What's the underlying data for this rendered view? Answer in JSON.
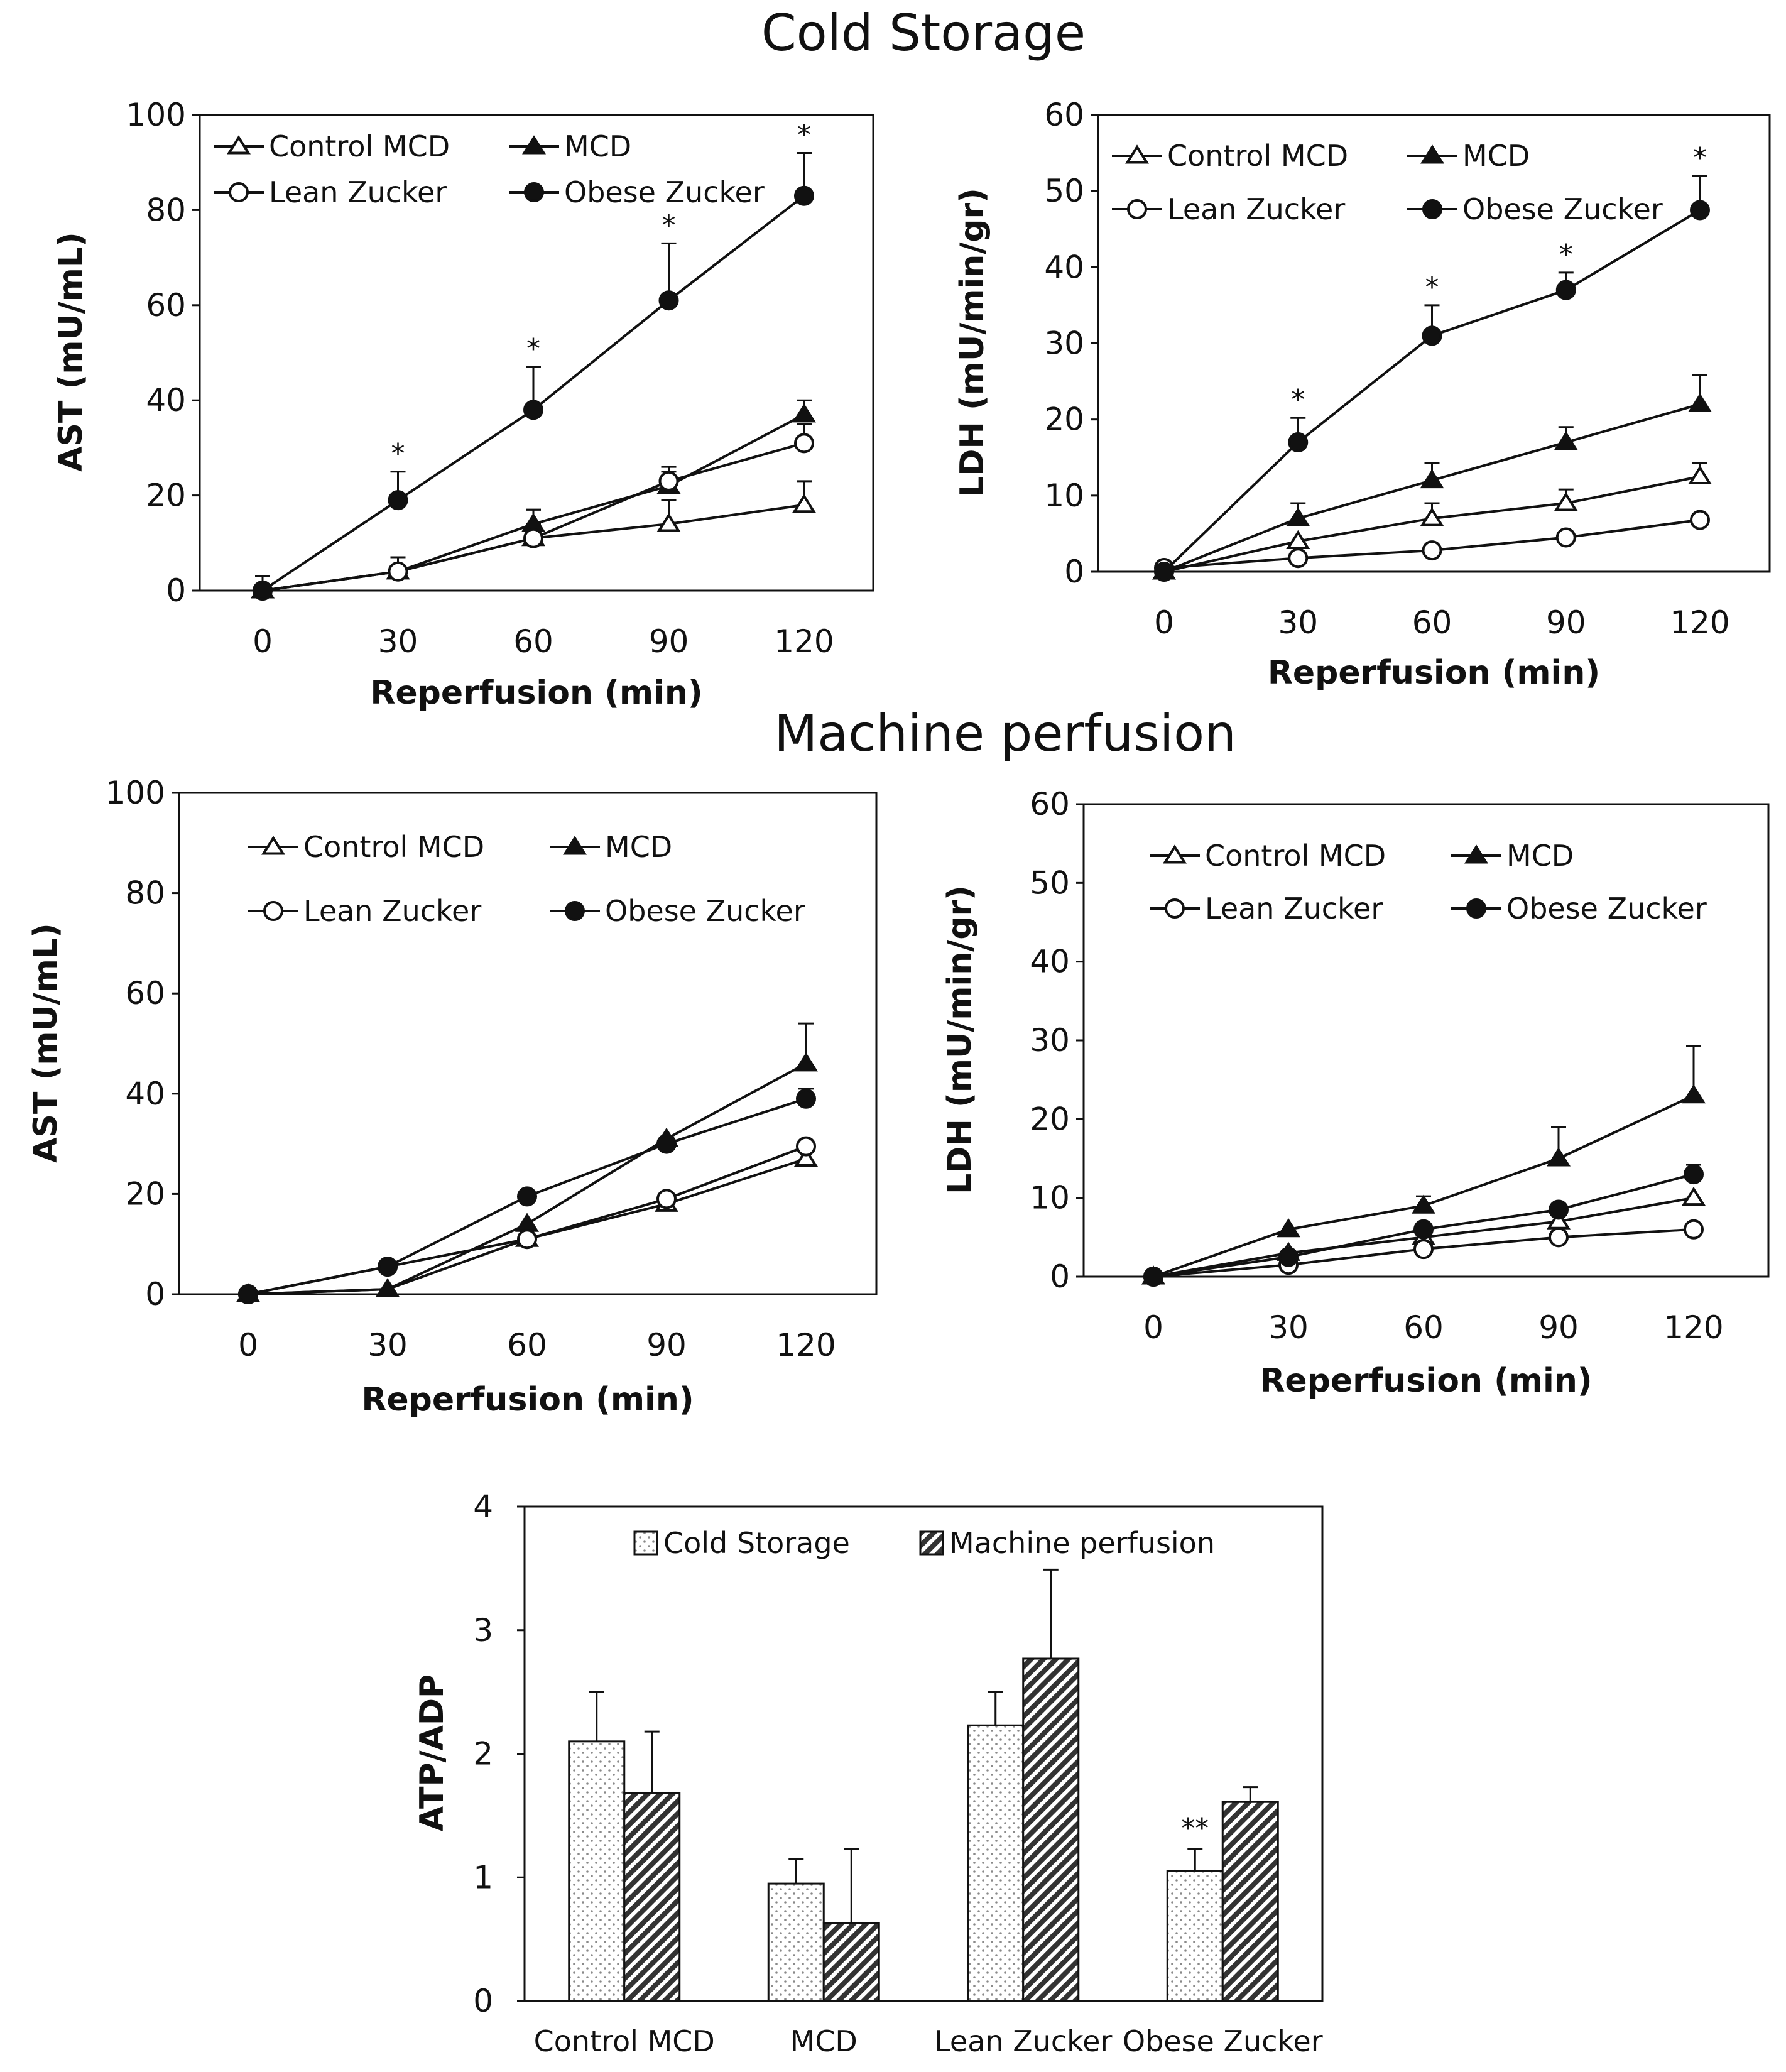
{
  "sections": {
    "cold_storage": "Cold Storage",
    "machine_perfusion": "Machine perfusion"
  },
  "chart_data": [
    {
      "id": "cs_ast",
      "type": "line",
      "section": "Cold Storage",
      "x": [
        0,
        30,
        60,
        90,
        120
      ],
      "xticks": [
        "0",
        "30",
        "60",
        "90",
        "120"
      ],
      "xlabel": "Reperfusion (min)",
      "ylabel": "AST (mU/mL)",
      "ylim": [
        0,
        100
      ],
      "yticks": [
        0,
        20,
        40,
        60,
        80,
        100
      ],
      "ytick_labels": [
        "0",
        "20",
        "40",
        "60",
        "80",
        "100"
      ],
      "legend": "top-left",
      "series": [
        {
          "name": "Control MCD",
          "marker": "triangle-open",
          "values": [
            0,
            4,
            11,
            14,
            18
          ],
          "errors": [
            3,
            3,
            3,
            5,
            5
          ]
        },
        {
          "name": "MCD",
          "marker": "triangle-filled",
          "values": [
            0,
            4,
            14,
            22,
            37
          ],
          "errors": [
            3,
            3,
            3,
            3,
            3
          ]
        },
        {
          "name": "Lean Zucker",
          "marker": "circle-open",
          "values": [
            0,
            4,
            11,
            23,
            31
          ],
          "errors": [
            3,
            3,
            6,
            3,
            4
          ]
        },
        {
          "name": "Obese Zucker",
          "marker": "circle-filled",
          "values": [
            0,
            19,
            38,
            61,
            83
          ],
          "errors": [
            3,
            6,
            9,
            12,
            9
          ]
        }
      ],
      "annotations": [
        "*",
        "*",
        "*",
        "*"
      ],
      "annotation_x": [
        30,
        60,
        90,
        120
      ]
    },
    {
      "id": "cs_ldh",
      "type": "line",
      "section": "Cold Storage",
      "x": [
        0,
        30,
        60,
        90,
        120
      ],
      "xticks": [
        "0",
        "30",
        "60",
        "90",
        "120"
      ],
      "xlabel": "Reperfusion (min)",
      "ylabel": "LDH (mU/min/gr)",
      "ylim": [
        0,
        60
      ],
      "yticks": [
        0,
        10,
        20,
        30,
        40,
        50,
        60
      ],
      "ytick_labels": [
        "0",
        "10",
        "20",
        "30",
        "40",
        "50",
        "60"
      ],
      "legend": "top-left",
      "series": [
        {
          "name": "Control MCD",
          "marker": "triangle-open",
          "values": [
            0,
            4,
            7,
            9,
            12.5
          ],
          "errors": [
            0,
            0,
            2,
            1.8,
            1.8
          ]
        },
        {
          "name": "MCD",
          "marker": "triangle-filled",
          "values": [
            0,
            7,
            12,
            17,
            22
          ],
          "errors": [
            0,
            2,
            2.3,
            2,
            3.8
          ]
        },
        {
          "name": "Lean Zucker",
          "marker": "circle-open",
          "values": [
            0.5,
            1.8,
            2.8,
            4.5,
            6.8
          ],
          "errors": [
            0,
            0,
            0,
            0,
            0
          ]
        },
        {
          "name": "Obese Zucker",
          "marker": "circle-filled",
          "values": [
            0,
            17,
            31,
            37,
            47.5
          ],
          "errors": [
            0,
            3.2,
            4,
            2.3,
            4.5
          ]
        }
      ],
      "annotations": [
        "*",
        "*",
        "*",
        "*"
      ],
      "annotation_x": [
        30,
        60,
        90,
        120
      ]
    },
    {
      "id": "mp_ast",
      "type": "line",
      "section": "Machine perfusion",
      "x": [
        0,
        30,
        60,
        90,
        120
      ],
      "xticks": [
        "0",
        "30",
        "60",
        "90",
        "120"
      ],
      "xlabel": "Reperfusion (min)",
      "ylabel": "AST (mU/mL)",
      "ylim": [
        0,
        100
      ],
      "yticks": [
        0,
        20,
        40,
        60,
        80,
        100
      ],
      "ytick_labels": [
        "0",
        "20",
        "40",
        "60",
        "80",
        "100"
      ],
      "legend": "top-left",
      "series": [
        {
          "name": "Control MCD",
          "marker": "triangle-open",
          "values": [
            0,
            1,
            11,
            18,
            27
          ],
          "errors": [
            0,
            0,
            0,
            0,
            0
          ]
        },
        {
          "name": "MCD",
          "marker": "triangle-filled",
          "values": [
            0,
            1,
            14,
            31,
            46
          ],
          "errors": [
            0,
            0,
            0,
            0,
            8
          ]
        },
        {
          "name": "Lean Zucker",
          "marker": "circle-open",
          "values": [
            0,
            5.5,
            11,
            19,
            29.5
          ],
          "errors": [
            0,
            0,
            0,
            0,
            0
          ]
        },
        {
          "name": "Obese Zucker",
          "marker": "circle-filled",
          "values": [
            0,
            5.5,
            19.5,
            30,
            39
          ],
          "errors": [
            0,
            0,
            0,
            0,
            2
          ]
        }
      ],
      "annotations": [],
      "annotation_x": []
    },
    {
      "id": "mp_ldh",
      "type": "line",
      "section": "Machine perfusion",
      "x": [
        0,
        30,
        60,
        90,
        120
      ],
      "xticks": [
        "0",
        "30",
        "60",
        "90",
        "120"
      ],
      "xlabel": "Reperfusion (min)",
      "ylabel": "LDH (mU/min/gr)",
      "ylim": [
        0,
        60
      ],
      "yticks": [
        0,
        10,
        20,
        30,
        40,
        50,
        60
      ],
      "ytick_labels": [
        "0",
        "10",
        "20",
        "30",
        "40",
        "50",
        "60"
      ],
      "legend": "top-left",
      "series": [
        {
          "name": "Control MCD",
          "marker": "triangle-open",
          "values": [
            0,
            3,
            5,
            7,
            10
          ],
          "errors": [
            0,
            0,
            0,
            0,
            0
          ]
        },
        {
          "name": "MCD",
          "marker": "triangle-filled",
          "values": [
            0,
            6,
            9,
            15,
            23
          ],
          "errors": [
            0,
            0,
            1.2,
            4,
            6.3
          ]
        },
        {
          "name": "Lean Zucker",
          "marker": "circle-open",
          "values": [
            0,
            1.5,
            3.5,
            5,
            6
          ],
          "errors": [
            0,
            0,
            0,
            0,
            0
          ]
        },
        {
          "name": "Obese Zucker",
          "marker": "circle-filled",
          "values": [
            0,
            2.5,
            6,
            8.5,
            13
          ],
          "errors": [
            0,
            0,
            0,
            0,
            1.2
          ]
        }
      ],
      "annotations": [],
      "annotation_x": []
    },
    {
      "id": "atp_bar",
      "type": "bar",
      "categories": [
        "Control MCD",
        "MCD",
        "Lean Zucker",
        "Obese Zucker"
      ],
      "ylabel": "ATP/ADP",
      "xlabel": "",
      "ylim": [
        0,
        4
      ],
      "yticks": [
        0,
        1,
        2,
        3,
        4
      ],
      "ytick_labels": [
        "0",
        "1",
        "2",
        "3",
        "4"
      ],
      "legend": "top",
      "series": [
        {
          "name": "Cold Storage",
          "pattern": "dotted",
          "values": [
            2.1,
            0.95,
            2.23,
            1.05
          ],
          "errors": [
            0.4,
            0.2,
            0.27,
            0.18
          ]
        },
        {
          "name": "Machine perfusion",
          "pattern": "hatched",
          "values": [
            1.68,
            0.63,
            2.77,
            1.61
          ],
          "errors": [
            0.5,
            0.6,
            0.72,
            0.12
          ]
        }
      ],
      "annotations": [
        "**"
      ],
      "annotation_category": [
        "Obese Zucker"
      ]
    }
  ]
}
